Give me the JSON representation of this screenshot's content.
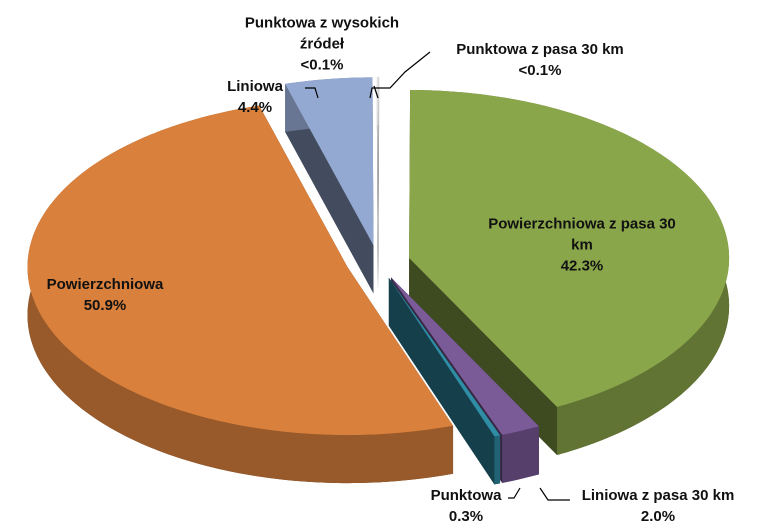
{
  "chart_data": {
    "type": "pie3d",
    "categories": [
      "Punktowa z pasa 30 km",
      "Powierzchniowa z pasa 30 km",
      "Liniowa z pasa 30 km",
      "Punktowa",
      "Powierzchniowa",
      "Liniowa",
      "Punktowa z wysokich źródeł"
    ],
    "values": [
      0.05,
      42.3,
      2.0,
      0.3,
      50.9,
      4.4,
      0.05
    ],
    "value_labels": [
      "<0.1%",
      "42.3%",
      "2.0%",
      "0.3%",
      "50.9%",
      "4.4%",
      "<0.1%"
    ],
    "colors": [
      "#d8d8d8",
      "#8aa64a",
      "#7b5a98",
      "#2f8ea6",
      "#d9803c",
      "#94a9d2",
      "#e8e8e8"
    ]
  }
}
